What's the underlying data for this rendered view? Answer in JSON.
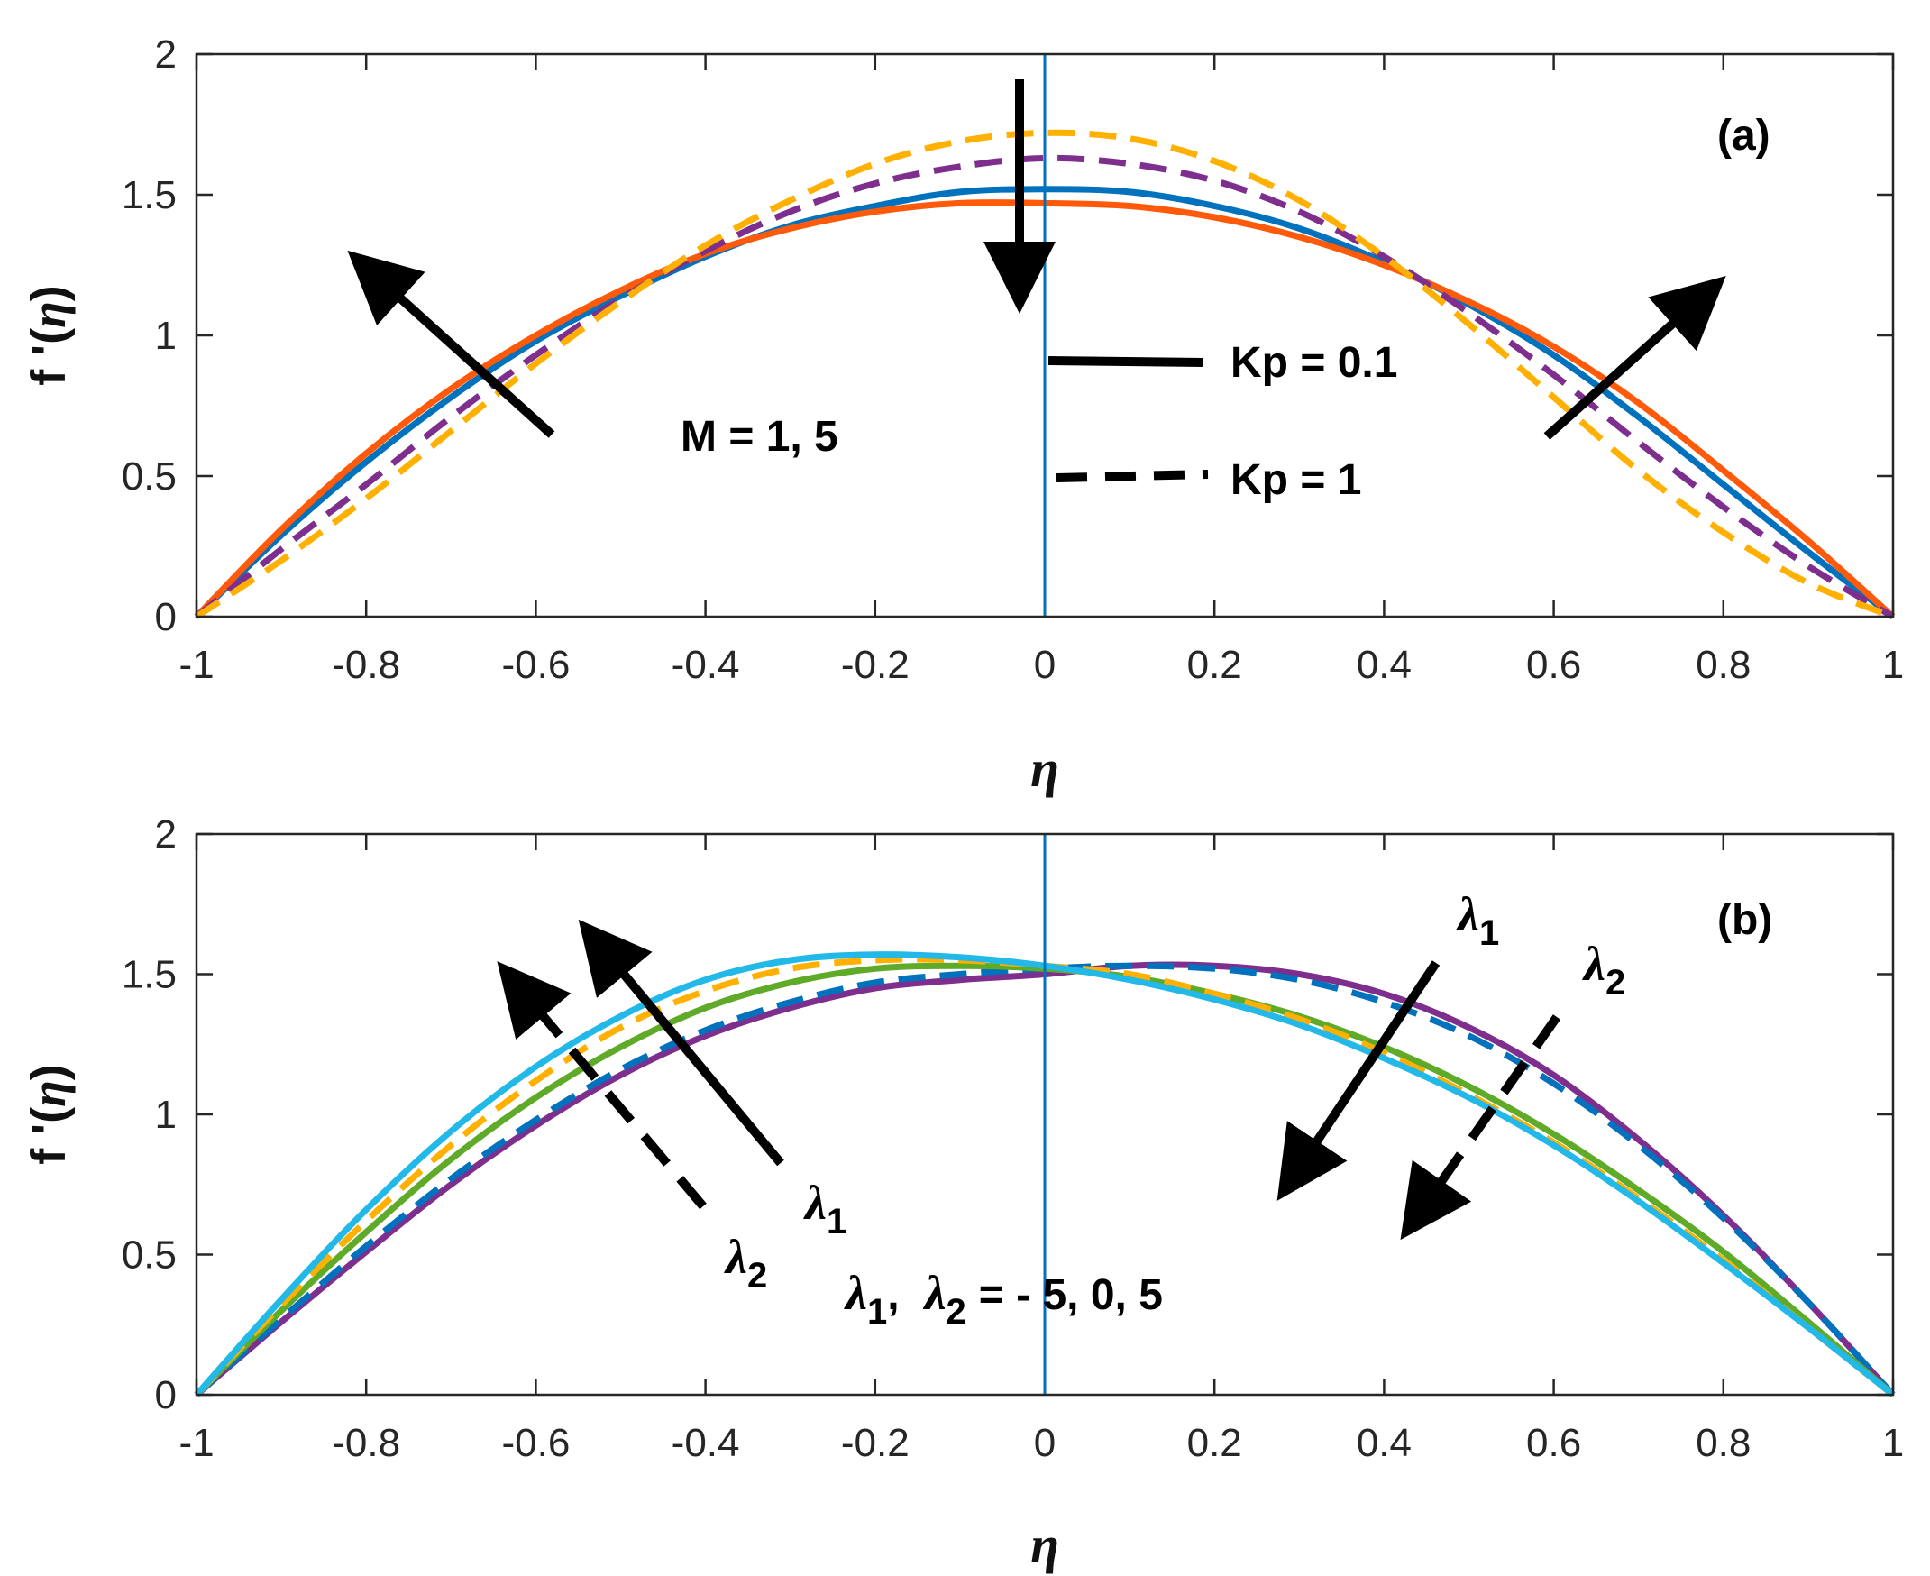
{
  "chart_data": [
    {
      "panel": "(a)",
      "type": "line",
      "x": [
        -1,
        -0.9,
        -0.8,
        -0.7,
        -0.6,
        -0.5,
        -0.4,
        -0.3,
        -0.2,
        -0.1,
        0,
        0.1,
        0.2,
        0.3,
        0.4,
        0.5,
        0.6,
        0.7,
        0.8,
        0.9,
        1
      ],
      "xlabel": "η",
      "ylabel": "f '(η)",
      "xlim": [
        -1,
        1
      ],
      "ylim": [
        0,
        2
      ],
      "xticks": [
        "-1",
        "-0.8",
        "-0.6",
        "-0.4",
        "-0.2",
        "0",
        "0.2",
        "0.4",
        "0.6",
        "0.8",
        "1"
      ],
      "yticks": [
        "0",
        "0.5",
        "1",
        "1.5",
        "2"
      ],
      "series": [
        {
          "name": "M = 1, Kp = 0.1",
          "color": "#0072BD",
          "dash": "solid",
          "values": [
            0,
            0.29,
            0.55,
            0.78,
            0.98,
            1.14,
            1.28,
            1.39,
            1.46,
            1.51,
            1.52,
            1.51,
            1.46,
            1.38,
            1.26,
            1.11,
            0.93,
            0.71,
            0.47,
            0.23,
            0
          ]
        },
        {
          "name": "M = 5, Kp = 0.1",
          "color": "#FF5A0A",
          "dash": "solid",
          "values": [
            0,
            0.31,
            0.58,
            0.81,
            1.0,
            1.16,
            1.29,
            1.38,
            1.44,
            1.47,
            1.47,
            1.46,
            1.42,
            1.35,
            1.25,
            1.12,
            0.96,
            0.76,
            0.52,
            0.27,
            0
          ]
        },
        {
          "name": "M = 1, Kp = 1",
          "color": "#7E2F8E",
          "dash": "dashed",
          "values": [
            0,
            0.24,
            0.47,
            0.71,
            0.93,
            1.13,
            1.3,
            1.44,
            1.54,
            1.6,
            1.63,
            1.61,
            1.55,
            1.44,
            1.28,
            1.08,
            0.86,
            0.62,
            0.39,
            0.18,
            0
          ]
        },
        {
          "name": "M = 5, Kp = 1",
          "color": "#FFB000",
          "dash": "dashed",
          "values": [
            0,
            0.2,
            0.42,
            0.66,
            0.9,
            1.12,
            1.32,
            1.48,
            1.61,
            1.69,
            1.72,
            1.7,
            1.62,
            1.48,
            1.28,
            1.04,
            0.78,
            0.52,
            0.3,
            0.12,
            0
          ]
        }
      ],
      "annotations": {
        "panel_label": "(a)",
        "param_label": "M = 1, 5",
        "legend_solid": "Kp = 0.1",
        "legend_dashed": "Kp = 1"
      }
    },
    {
      "panel": "(b)",
      "type": "line",
      "x": [
        -1,
        -0.9,
        -0.8,
        -0.7,
        -0.6,
        -0.5,
        -0.4,
        -0.3,
        -0.2,
        -0.1,
        0,
        0.1,
        0.2,
        0.3,
        0.4,
        0.5,
        0.6,
        0.7,
        0.8,
        0.9,
        1
      ],
      "xlabel": "η",
      "ylabel": "f '(η)",
      "xlim": [
        -1,
        1
      ],
      "ylim": [
        0,
        2
      ],
      "xticks": [
        "-1",
        "-0.8",
        "-0.6",
        "-0.4",
        "-0.2",
        "0",
        "0.2",
        "0.4",
        "0.6",
        "0.8",
        "1"
      ],
      "yticks": [
        "0",
        "0.5",
        "1",
        "1.5",
        "2"
      ],
      "series": [
        {
          "name": "λ = -5",
          "color": "#7E2F8E",
          "dash": "solid",
          "values": [
            0,
            0.26,
            0.51,
            0.75,
            0.96,
            1.14,
            1.28,
            1.38,
            1.45,
            1.48,
            1.5,
            1.53,
            1.53,
            1.5,
            1.43,
            1.31,
            1.14,
            0.91,
            0.64,
            0.33,
            0
          ]
        },
        {
          "name": "λ = -5 (dashed)",
          "color": "#0072BD",
          "dash": "dashed",
          "values": [
            0,
            0.27,
            0.53,
            0.77,
            0.98,
            1.16,
            1.3,
            1.4,
            1.47,
            1.5,
            1.52,
            1.53,
            1.52,
            1.48,
            1.4,
            1.28,
            1.11,
            0.89,
            0.63,
            0.33,
            0
          ]
        },
        {
          "name": "λ = 0",
          "color": "#5FAA28",
          "dash": "solid",
          "values": [
            0,
            0.3,
            0.58,
            0.84,
            1.06,
            1.24,
            1.38,
            1.47,
            1.52,
            1.53,
            1.52,
            1.49,
            1.43,
            1.35,
            1.24,
            1.1,
            0.93,
            0.73,
            0.51,
            0.26,
            0
          ]
        },
        {
          "name": "λ = 5 (dashed)",
          "color": "#FFB000",
          "dash": "dashed",
          "values": [
            0,
            0.32,
            0.62,
            0.89,
            1.12,
            1.31,
            1.44,
            1.52,
            1.55,
            1.55,
            1.53,
            1.5,
            1.43,
            1.34,
            1.22,
            1.07,
            0.9,
            0.7,
            0.48,
            0.24,
            0
          ]
        },
        {
          "name": "λ = 5",
          "color": "#22B8E8",
          "dash": "solid",
          "values": [
            0,
            0.34,
            0.66,
            0.94,
            1.17,
            1.35,
            1.48,
            1.55,
            1.57,
            1.56,
            1.53,
            1.48,
            1.41,
            1.32,
            1.2,
            1.06,
            0.89,
            0.69,
            0.47,
            0.24,
            0
          ]
        }
      ],
      "annotations": {
        "panel_label": "(b)",
        "range_label": "= - 5, 0, 5",
        "lambda": "λ",
        "sub1": "1",
        "sub2": "2",
        "comma": ","
      }
    }
  ]
}
